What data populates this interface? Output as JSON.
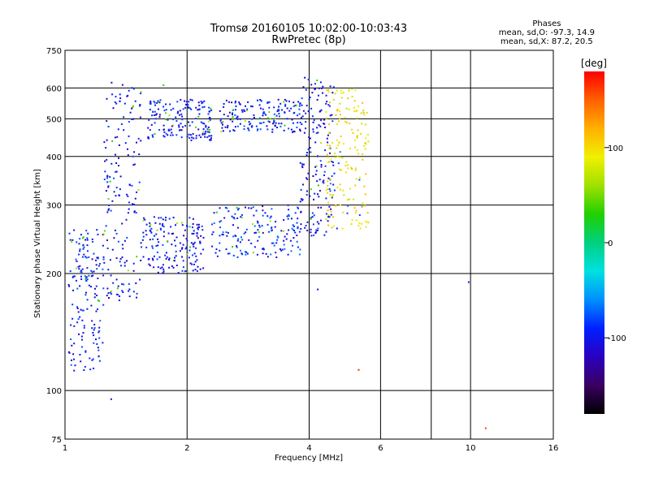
{
  "header": {
    "title": "Tromsø 20160105 10:02:00-10:03:43",
    "subtitle": "RwPretec (8p)"
  },
  "stats": {
    "heading": "Phases",
    "line_o": "mean, sd,O: -97.3, 14.9",
    "line_x": "mean, sd,X:  87.2, 20.5"
  },
  "colorbar": {
    "unit_label": "[deg]",
    "tick_labels": [
      "100",
      "0",
      "-100"
    ],
    "tick_values": [
      100,
      0,
      -100
    ],
    "range": [
      -180,
      180
    ],
    "stops": [
      "#000000",
      "#3a0060",
      "#2a00c0",
      "#0020ff",
      "#0090ff",
      "#00e0e0",
      "#00d080",
      "#20d000",
      "#a0e000",
      "#f0f000",
      "#ffb000",
      "#ff6000",
      "#ff0000"
    ]
  },
  "chart_data": {
    "type": "scatter",
    "title": "Tromsø 20160105 10:02:00-10:03:43",
    "subtitle": "RwPretec (8p)",
    "xlabel": "Frequency [MHz]",
    "ylabel": "Stationary phase Virtual Height [km]",
    "x_scale": "log",
    "y_scale": "log",
    "xlim": [
      1,
      16
    ],
    "ylim": [
      75,
      750
    ],
    "x_ticks": [
      1,
      2,
      4,
      6,
      10,
      16
    ],
    "x_tick_labels": [
      "1",
      "2",
      "4",
      "6",
      "10",
      "16"
    ],
    "x_gridlines": [
      1,
      2,
      4,
      6,
      8,
      10,
      16
    ],
    "y_ticks": [
      75,
      100,
      200,
      300,
      400,
      500,
      600,
      750
    ],
    "y_tick_labels": [
      "75",
      "100",
      "200",
      "300",
      "400",
      "500",
      "600",
      "750"
    ],
    "y_gridlines": [
      100,
      200,
      300,
      400,
      500,
      600
    ],
    "color_variable": "Phase [deg]",
    "trace_clusters": [
      {
        "x_range": [
          1.02,
          1.25
        ],
        "y_range": [
          112,
          260
        ],
        "phase": -95
      },
      {
        "x_range": [
          1.25,
          1.55
        ],
        "y_range": [
          170,
          620
        ],
        "phase": -100
      },
      {
        "x_range": [
          1.55,
          2.2
        ],
        "y_range": [
          200,
          280
        ],
        "phase": -100
      },
      {
        "x_range": [
          1.6,
          2.3
        ],
        "y_range": [
          440,
          560
        ],
        "phase": -100
      },
      {
        "x_range": [
          2.3,
          3.8
        ],
        "y_range": [
          220,
          300
        ],
        "phase": -90
      },
      {
        "x_range": [
          2.4,
          3.8
        ],
        "y_range": [
          460,
          560
        ],
        "phase": -95
      },
      {
        "x_range": [
          3.8,
          4.6
        ],
        "y_range": [
          250,
          640
        ],
        "phase": -100
      },
      {
        "x_range": [
          4.4,
          5.6
        ],
        "y_range": [
          260,
          600
        ],
        "phase": 95
      }
    ],
    "notable_points": [
      {
        "x": 1.3,
        "y": 95,
        "phase": -100
      },
      {
        "x": 1.75,
        "y": 610,
        "phase": 30
      },
      {
        "x": 4.2,
        "y": 182,
        "phase": -100
      },
      {
        "x": 5.3,
        "y": 113,
        "phase": 170
      },
      {
        "x": 9.9,
        "y": 190,
        "phase": -100
      },
      {
        "x": 10.9,
        "y": 80,
        "phase": 160
      }
    ]
  }
}
